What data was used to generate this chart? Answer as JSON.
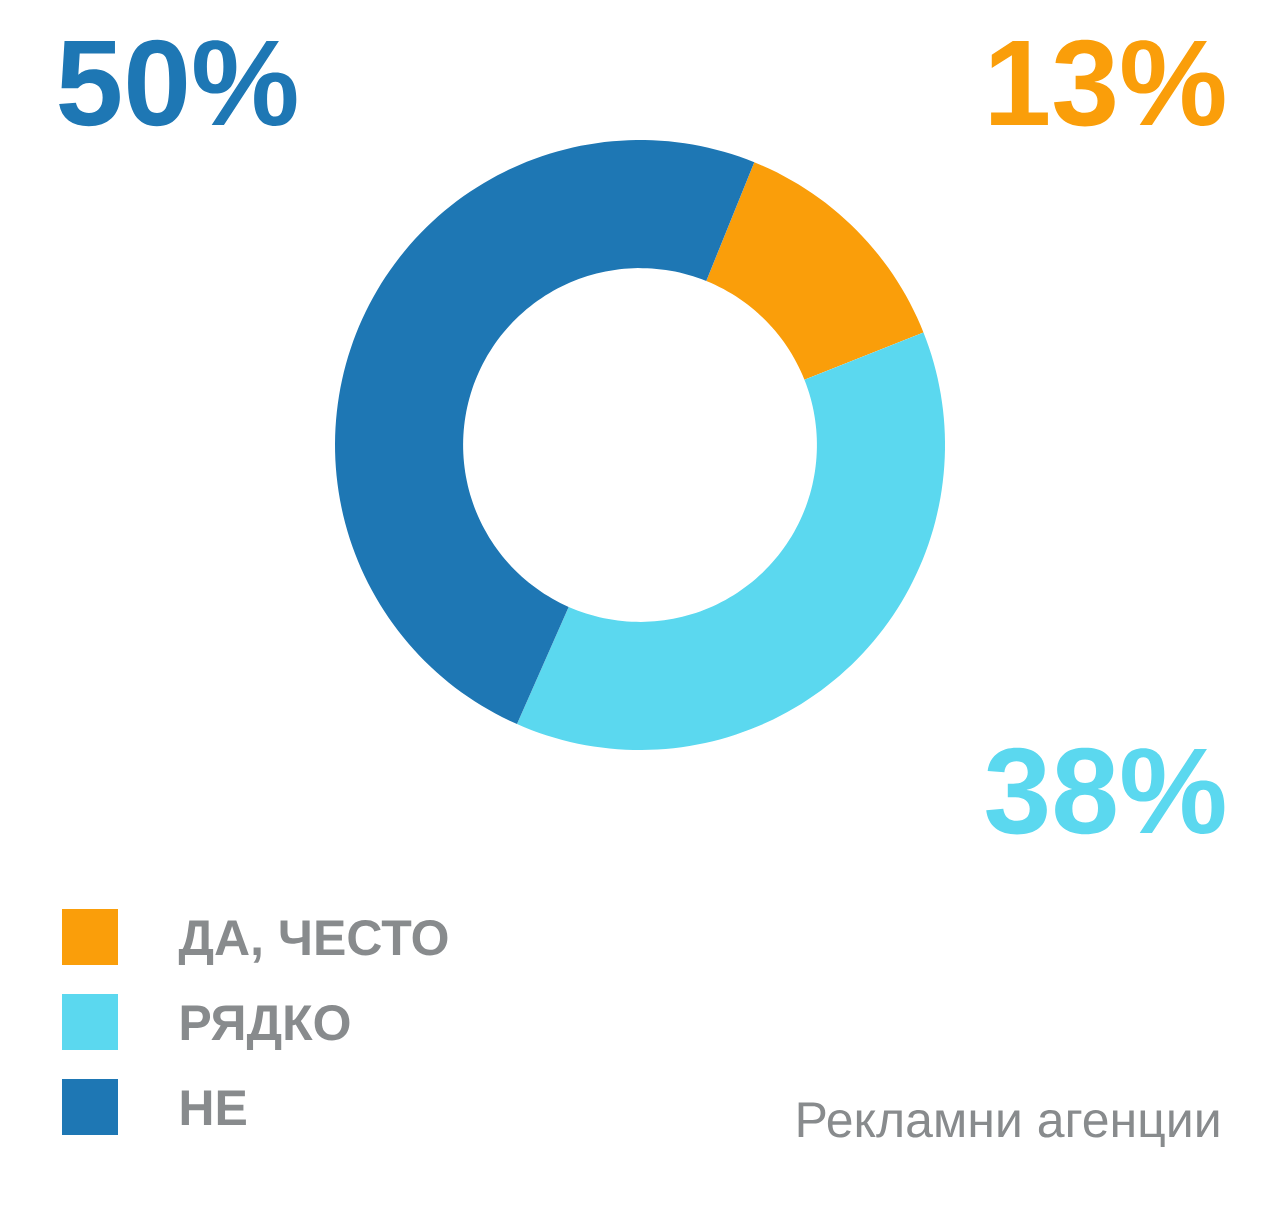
{
  "chart_data": {
    "type": "donut",
    "categories": [
      "ДА, ЧЕСТО",
      "РЯДКО",
      "НЕ"
    ],
    "values": [
      13,
      38,
      50
    ],
    "colors": [
      "#fa9e0a",
      "#5bd8ef",
      "#1e77b4"
    ],
    "value_labels": [
      "13%",
      "38%",
      "50%"
    ],
    "legend": "bottom left",
    "annotations": [
      "Рекламни агенции"
    ]
  }
}
